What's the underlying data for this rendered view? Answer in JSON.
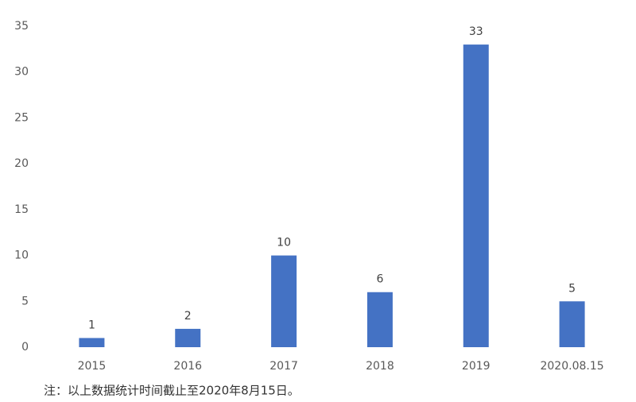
{
  "chart_data": {
    "type": "bar",
    "categories": [
      "2015",
      "2016",
      "2017",
      "2018",
      "2019",
      "2020.08.15"
    ],
    "values": [
      1,
      2,
      10,
      6,
      33,
      5
    ],
    "color": "#4472c4",
    "ylim": [
      0,
      35
    ],
    "yticks": [
      0,
      5,
      10,
      15,
      20,
      25,
      30,
      35
    ],
    "grid": false,
    "note": "注：以上数据统计时间截止至2020年8月15日。"
  }
}
